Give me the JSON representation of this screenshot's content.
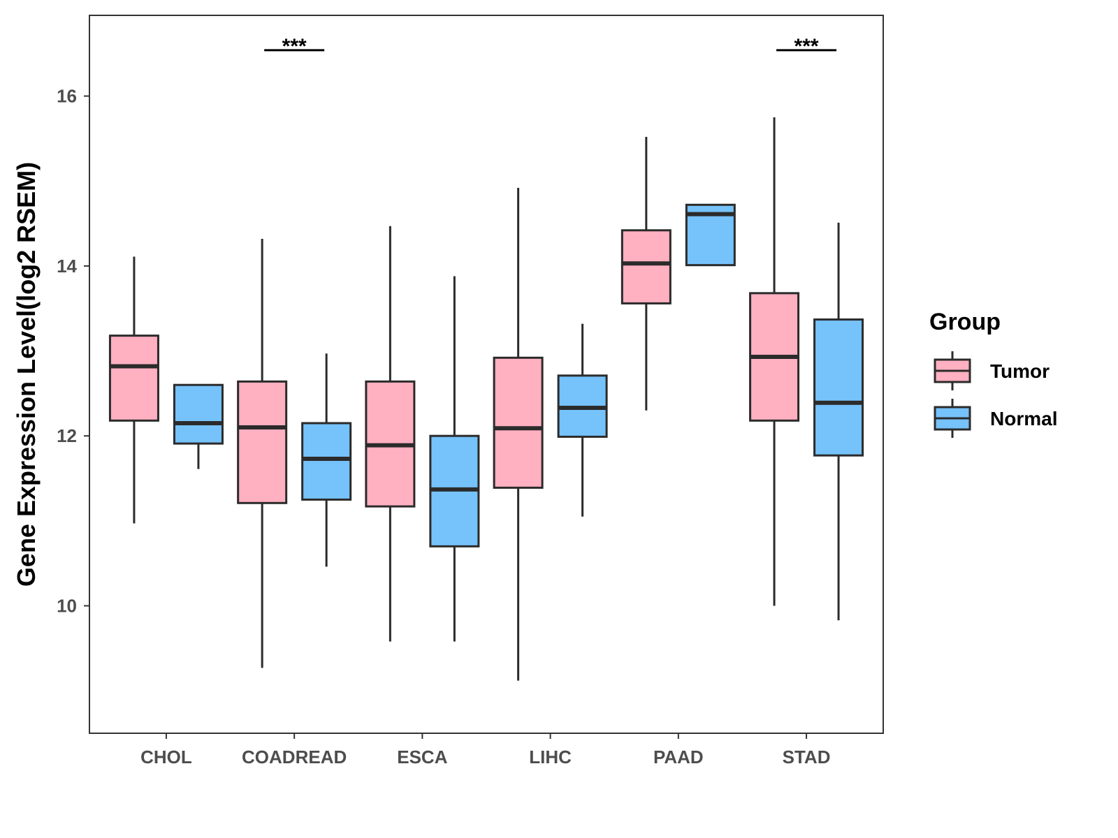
{
  "chart_data": {
    "type": "box",
    "title": "",
    "xlabel": "",
    "ylabel": "Gene Expression Level(log2 RSEM)",
    "ylim": [
      8.5,
      16.95
    ],
    "yticks": [
      10,
      12,
      14,
      16
    ],
    "ytick_labels": [
      "10",
      "12",
      "14",
      "16"
    ],
    "categories": [
      "CHOL",
      "COADREAD",
      "ESCA",
      "LIHC",
      "PAAD",
      "STAD"
    ],
    "grid": false,
    "legend": {
      "title": "Group",
      "placement": "right",
      "entries": [
        "Tumor",
        "Normal"
      ]
    },
    "colors": {
      "Tumor": "#FFB0C1",
      "Normal": "#76C2FA",
      "outline": "#2b2b2b"
    },
    "series": [
      {
        "name": "Tumor",
        "boxes": [
          {
            "whisker_low": 10.97,
            "q1": 12.18,
            "median": 12.82,
            "q3": 13.18,
            "whisker_high": 14.11
          },
          {
            "whisker_low": 9.27,
            "q1": 11.21,
            "median": 12.1,
            "q3": 12.64,
            "whisker_high": 14.32
          },
          {
            "whisker_low": 9.58,
            "q1": 11.17,
            "median": 11.89,
            "q3": 12.64,
            "whisker_high": 14.47
          },
          {
            "whisker_low": 9.12,
            "q1": 11.39,
            "median": 12.09,
            "q3": 12.92,
            "whisker_high": 14.92
          },
          {
            "whisker_low": 12.3,
            "q1": 13.56,
            "median": 14.03,
            "q3": 14.42,
            "whisker_high": 15.52
          },
          {
            "whisker_low": 10.0,
            "q1": 12.18,
            "median": 12.93,
            "q3": 13.68,
            "whisker_high": 15.75
          }
        ]
      },
      {
        "name": "Normal",
        "boxes": [
          {
            "whisker_low": 11.61,
            "q1": 11.91,
            "median": 12.15,
            "q3": 12.6,
            "whisker_high": 12.6
          },
          {
            "whisker_low": 10.46,
            "q1": 11.25,
            "median": 11.73,
            "q3": 12.15,
            "whisker_high": 12.97
          },
          {
            "whisker_low": 9.58,
            "q1": 10.7,
            "median": 11.37,
            "q3": 12.0,
            "whisker_high": 13.88
          },
          {
            "whisker_low": 11.05,
            "q1": 11.99,
            "median": 12.33,
            "q3": 12.71,
            "whisker_high": 13.32
          },
          {
            "whisker_low": 14.01,
            "q1": 14.01,
            "median": 14.61,
            "q3": 14.72,
            "whisker_high": 14.73
          },
          {
            "whisker_low": 9.83,
            "q1": 11.77,
            "median": 12.39,
            "q3": 13.37,
            "whisker_high": 14.51
          }
        ]
      }
    ],
    "annotations": [
      {
        "category": "COADREAD",
        "label": "***",
        "y": 16.54
      },
      {
        "category": "STAD",
        "label": "***",
        "y": 16.54
      }
    ]
  }
}
